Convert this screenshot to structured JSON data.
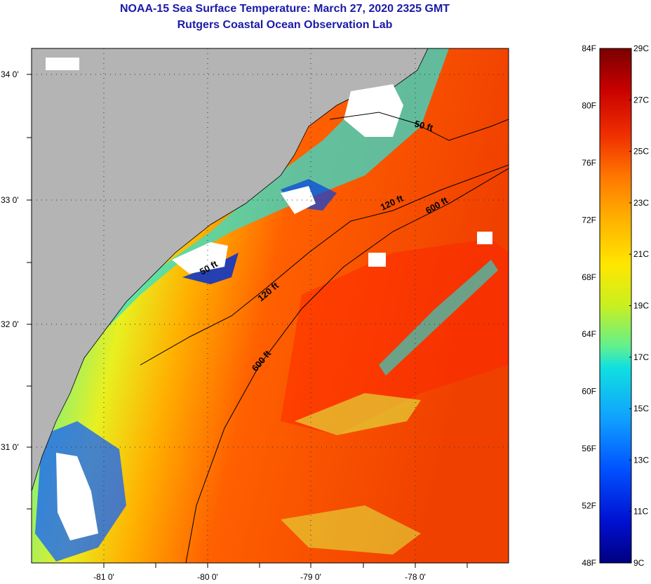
{
  "header": {
    "title": "NOAA-15 Sea Surface Temperature:  March 27, 2020 2325 GMT",
    "subtitle": "Rutgers Coastal Ocean Observation Lab"
  },
  "map": {
    "lat_labels": [
      "34 0'",
      "33 0'",
      "32 0'",
      "31 0'"
    ],
    "lon_labels": [
      "-81 0'",
      "-80 0'",
      "-79 0'",
      "-78 0'"
    ],
    "contour_labels": [
      "50 ft",
      "120 ft",
      "600 ft",
      "120 ft",
      "600 ft",
      "50 ft"
    ],
    "colors": {
      "land": "#b4b4b4",
      "cloud": "#ffffff",
      "frame": "#000000"
    }
  },
  "colorbar": {
    "fahrenheit_labels": [
      "84F",
      "80F",
      "76F",
      "72F",
      "68F",
      "64F",
      "60F",
      "56F",
      "52F",
      "48F"
    ],
    "celsius_labels": [
      "29C",
      "27C",
      "25C",
      "23C",
      "21C",
      "19C",
      "17C",
      "15C",
      "13C",
      "11C",
      "9C"
    ],
    "colors_top_to_bottom": [
      "#7a0000",
      "#c80000",
      "#f03000",
      "#ff7800",
      "#ffb000",
      "#ffe600",
      "#c8f020",
      "#60f090",
      "#10e0e0",
      "#10a0ff",
      "#0050ff",
      "#0010d0",
      "#000080"
    ]
  }
}
